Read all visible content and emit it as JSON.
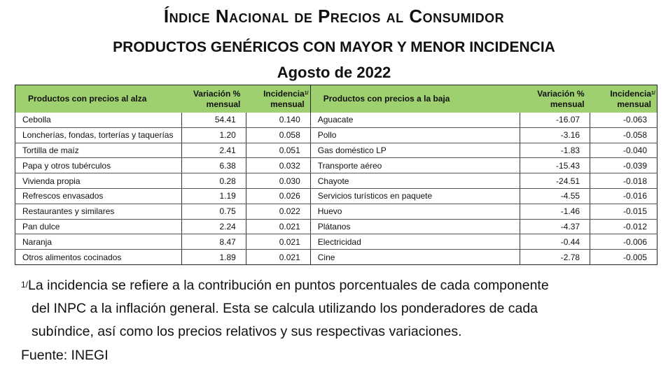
{
  "header": {
    "title": "Índice Nacional de Precios al Consumidor",
    "subtitle": "PRODUCTOS GENÉRICOS CON MAYOR Y MENOR INCIDENCIA",
    "date": "Agosto de 2022"
  },
  "table": {
    "columns": {
      "up_products": "Productos con precios al alza",
      "up_variation_1": "Variación %",
      "up_variation_2": "mensual",
      "up_incidence_1": "Incidencia",
      "up_incidence_2": "mensual",
      "down_products": "Productos con precios a la baja",
      "down_variation_1": "Variación %",
      "down_variation_2": "mensual",
      "down_incidence_1": "Incidencia",
      "down_incidence_2": "mensual",
      "footnote_mark": "1/"
    },
    "rows": [
      {
        "up_name": "Cebolla",
        "up_var": "54.41",
        "up_inc": "0.140",
        "down_name": "Aguacate",
        "down_var": "-16.07",
        "down_inc": "-0.063"
      },
      {
        "up_name": "Loncherías, fondas, torterías y taquerías",
        "up_var": "1.20",
        "up_inc": "0.058",
        "down_name": "Pollo",
        "down_var": "-3.16",
        "down_inc": "-0.058"
      },
      {
        "up_name": "Tortilla de maíz",
        "up_var": "2.41",
        "up_inc": "0.051",
        "down_name": "Gas doméstico LP",
        "down_var": "-1.83",
        "down_inc": "-0.040"
      },
      {
        "up_name": "Papa y otros tubérculos",
        "up_var": "6.38",
        "up_inc": "0.032",
        "down_name": "Transporte aéreo",
        "down_var": "-15.43",
        "down_inc": "-0.039"
      },
      {
        "up_name": "Vivienda propia",
        "up_var": "0.28",
        "up_inc": "0.030",
        "down_name": "Chayote",
        "down_var": "-24.51",
        "down_inc": "-0.018"
      },
      {
        "up_name": "Refrescos envasados",
        "up_var": "1.19",
        "up_inc": "0.026",
        "down_name": "Servicios turísticos en paquete",
        "down_var": "-4.55",
        "down_inc": "-0.016"
      },
      {
        "up_name": "Restaurantes y similares",
        "up_var": "0.75",
        "up_inc": "0.022",
        "down_name": "Huevo",
        "down_var": "-1.46",
        "down_inc": "-0.015"
      },
      {
        "up_name": "Pan dulce",
        "up_var": "2.24",
        "up_inc": "0.021",
        "down_name": "Plátanos",
        "down_var": "-4.37",
        "down_inc": "-0.012"
      },
      {
        "up_name": "Naranja",
        "up_var": "8.47",
        "up_inc": "0.021",
        "down_name": "Electricidad",
        "down_var": "-0.44",
        "down_inc": "-0.006"
      },
      {
        "up_name": "Otros alimentos cocinados",
        "up_var": "1.89",
        "up_inc": "0.021",
        "down_name": "Cine",
        "down_var": "-2.78",
        "down_inc": "-0.005"
      }
    ]
  },
  "footnote": {
    "mark": "1/",
    "line1": "La incidencia se refiere a la contribución en puntos porcentuales de cada componente",
    "line2": "del INPC a la inflación general. Esta se calcula utilizando los ponderadores de cada",
    "line3": "subíndice, así como los precios relativos y sus respectivas variaciones."
  },
  "source": "Fuente: INEGI",
  "colors": {
    "header_bg": "#9fd06f"
  }
}
